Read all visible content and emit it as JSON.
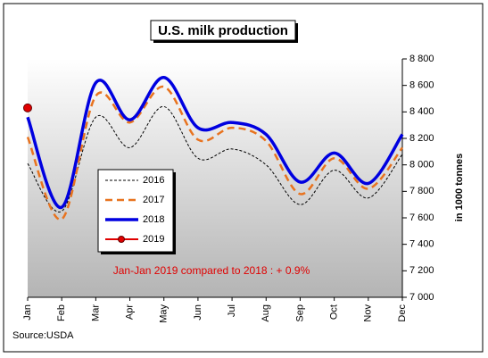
{
  "chart_data": {
    "type": "line",
    "title": "U.S. milk production",
    "y_label": "in 1000 tonnes",
    "annotation": "Jan-Jan 2019 compared to 2018 : + 0.9%",
    "source": "Source:USDA",
    "categories": [
      "Jan",
      "Feb",
      "Mar",
      "Apr",
      "May",
      "Jun",
      "Jul",
      "Aug",
      "Sep",
      "Oct",
      "Nov",
      "Dec"
    ],
    "series": [
      {
        "name": "2016",
        "color": "#000000",
        "values": [
          8010,
          7650,
          8360,
          8130,
          8440,
          8050,
          8120,
          8000,
          7700,
          7960,
          7750,
          8080
        ]
      },
      {
        "name": "2017",
        "color": "#e8731f",
        "values": [
          8210,
          7590,
          8520,
          8320,
          8590,
          8190,
          8280,
          8180,
          7780,
          8050,
          7820,
          8130
        ]
      },
      {
        "name": "2018",
        "color": "#0000e0",
        "values": [
          8360,
          7680,
          8620,
          8340,
          8660,
          8280,
          8320,
          8230,
          7870,
          8090,
          7860,
          8230
        ]
      },
      {
        "name": "2019",
        "color": "#e00000",
        "values": [
          8430,
          null,
          null,
          null,
          null,
          null,
          null,
          null,
          null,
          null,
          null,
          null
        ]
      }
    ],
    "ylim": [
      7000,
      8800
    ],
    "yticks": [
      {
        "value": 7000,
        "label": "7 000"
      },
      {
        "value": 7200,
        "label": "7 200"
      },
      {
        "value": 7400,
        "label": "7 400"
      },
      {
        "value": 7600,
        "label": "7 600"
      },
      {
        "value": 7800,
        "label": "7 800"
      },
      {
        "value": 8000,
        "label": "8 000"
      },
      {
        "value": 8200,
        "label": "8 200"
      },
      {
        "value": 8400,
        "label": "8 400"
      },
      {
        "value": 8600,
        "label": "8 600"
      },
      {
        "value": 8800,
        "label": "8 800"
      }
    ],
    "legend": "left"
  }
}
